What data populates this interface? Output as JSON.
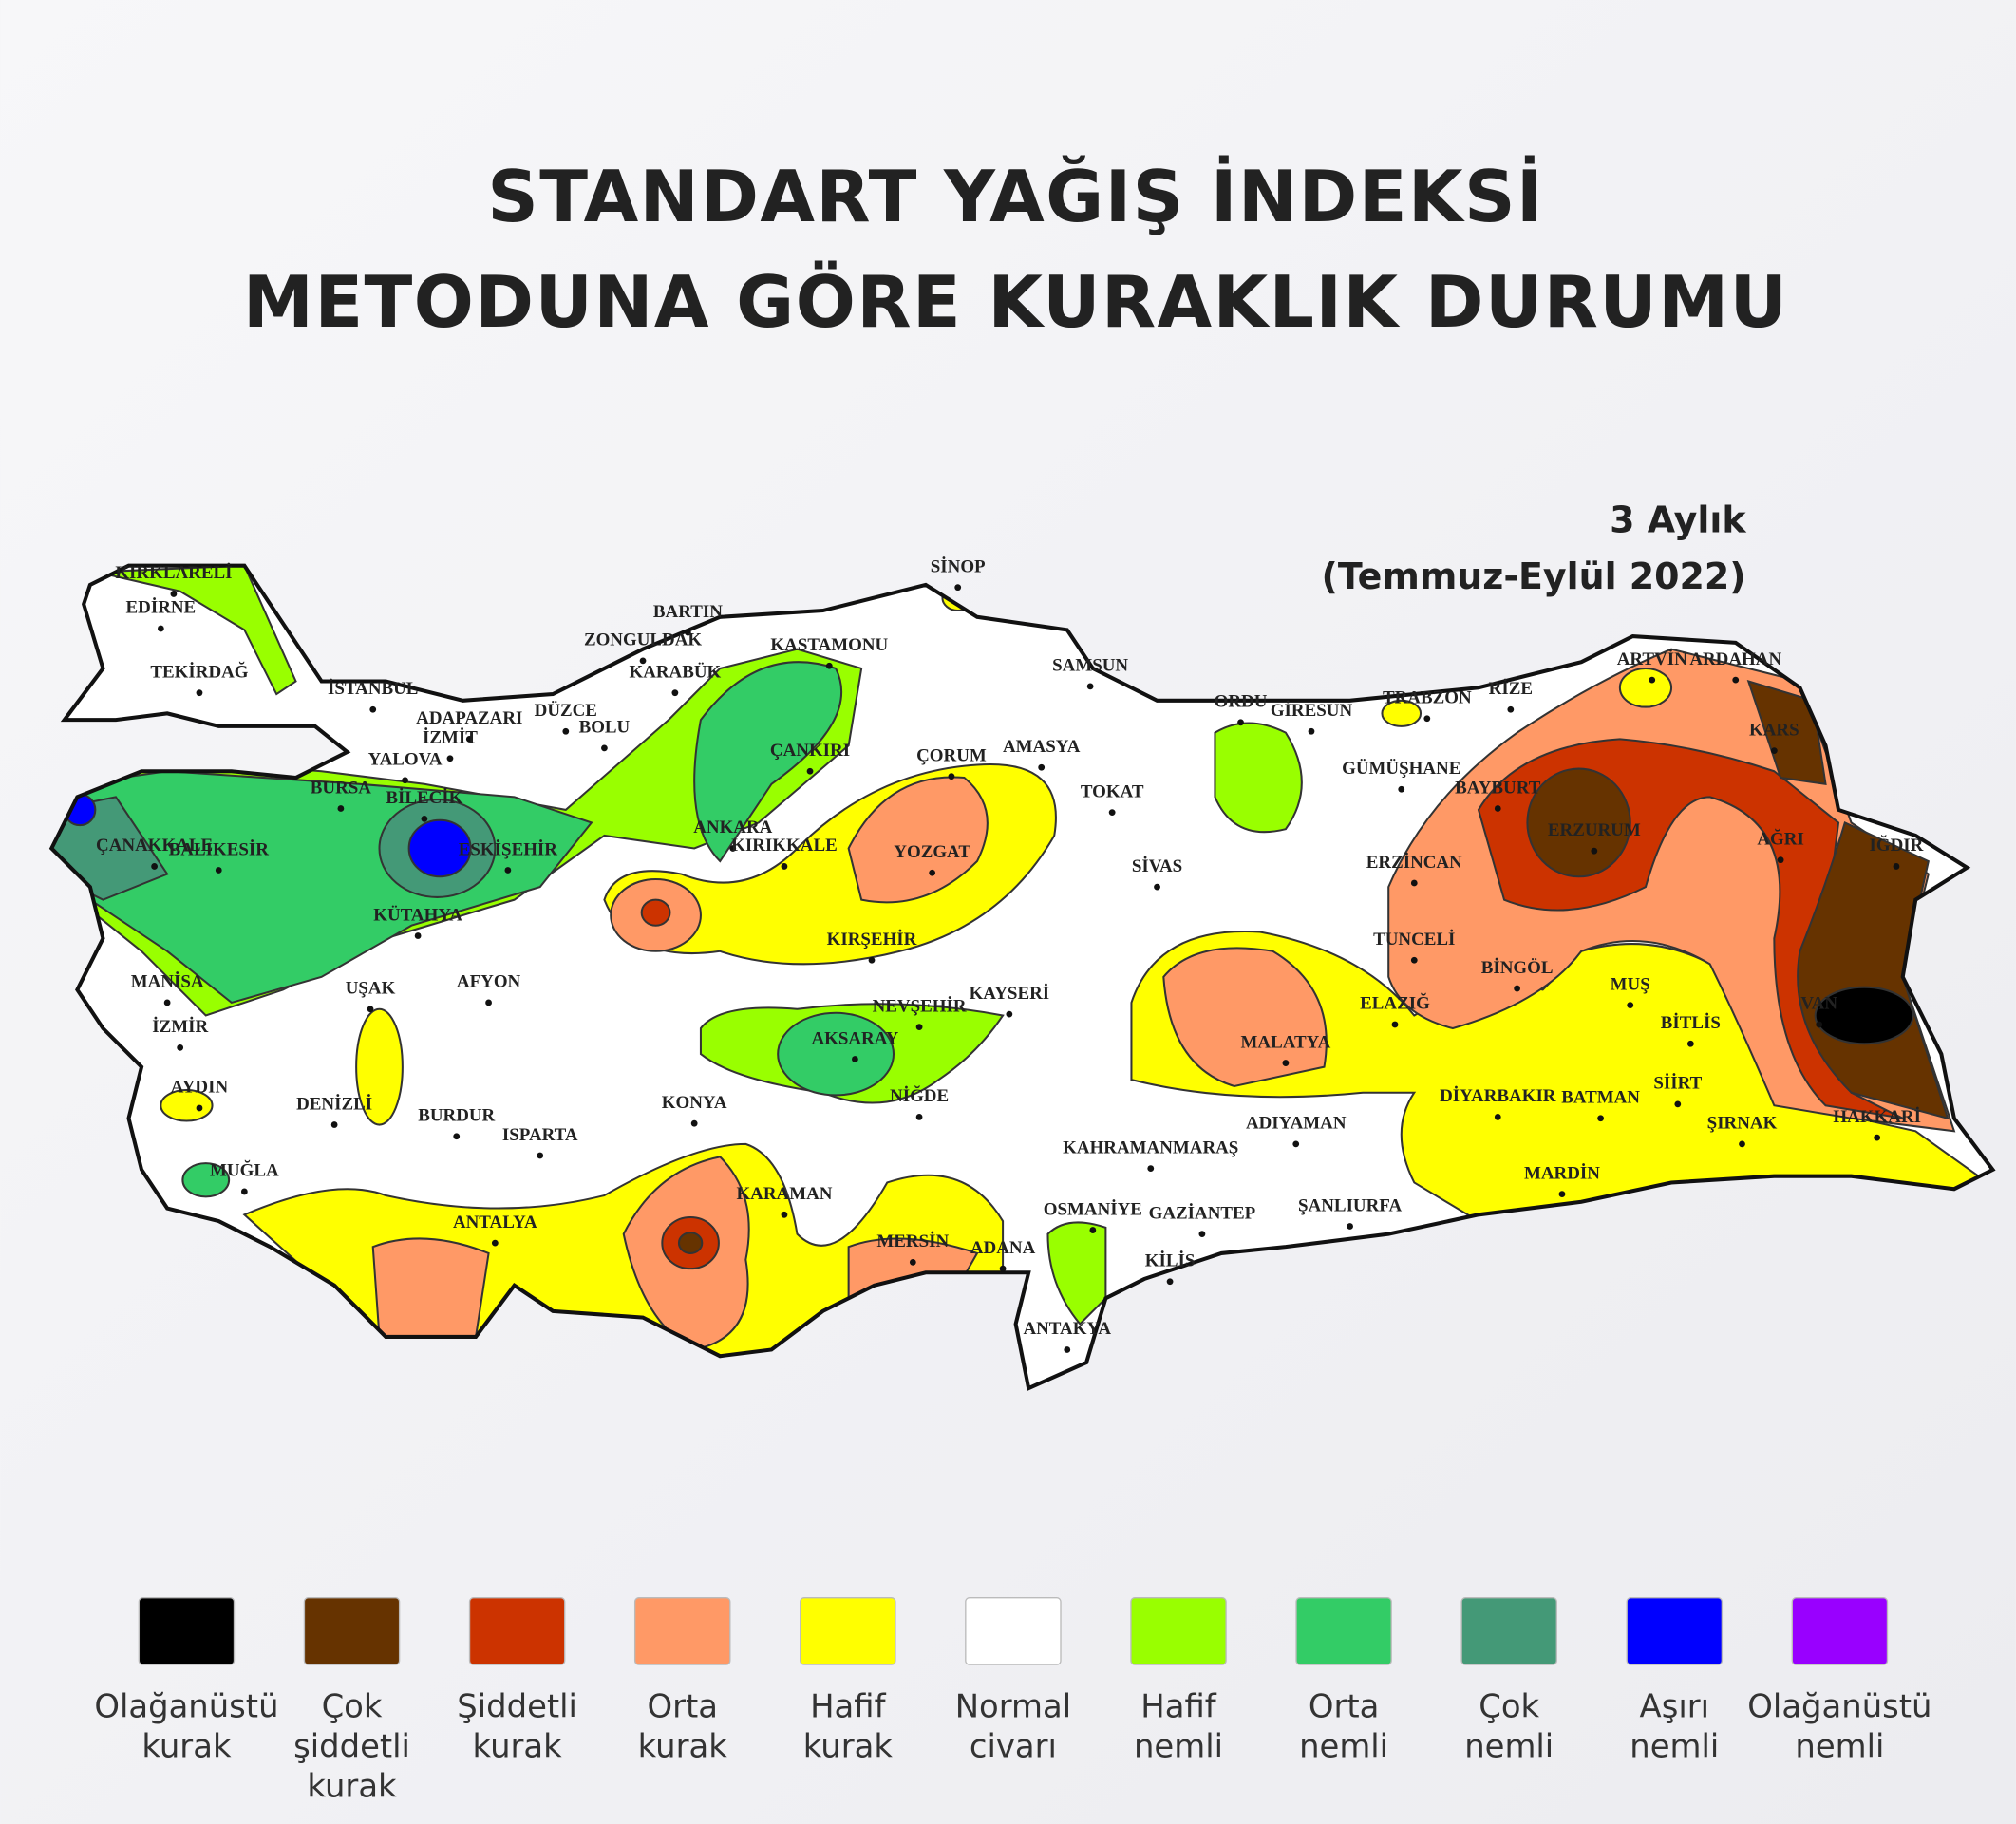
{
  "header": {
    "title": [
      "STANDART YAĞIŞ İNDEKSİ",
      "METODUNA GÖRE KURAKLIK DURUMU"
    ],
    "period": [
      "3 Aylık",
      "(Temmuz-Eylül 2022)"
    ]
  },
  "map": {
    "cities": [
      "KIRKLARELİ",
      "EDİRNE",
      "TEKİRDAĞ",
      "İSTANBUL",
      "ADAPAZARI",
      "DÜZCE",
      "BOLU",
      "İZMİT",
      "YALOVA",
      "BURSA",
      "BİLECİK",
      "ÇANAKKALE",
      "BALIKESİR",
      "ESKİŞEHİR",
      "KÜTAHYA",
      "MANİSA",
      "İZMİR",
      "UŞAK",
      "AFYON",
      "AYDIN",
      "DENİZLİ",
      "BURDUR",
      "ISPARTA",
      "MUĞLA",
      "ANTALYA",
      "KONYA",
      "KARAMAN",
      "MERSİN",
      "ADANA",
      "OSMANİYE",
      "ANTAKYA",
      "KİLİS",
      "GAZİANTEP",
      "ŞANLIURFA",
      "KAHRAMANMARAŞ",
      "ADIYAMAN",
      "MALATYA",
      "ELAZIĞ",
      "TUNCELİ",
      "BİNGÖL",
      "DİYARBAKIR",
      "BATMAN",
      "SİİRT",
      "MUŞ",
      "BİTLİS",
      "ŞIRNAK",
      "HAKKARİ",
      "MARDİN",
      "VAN",
      "AĞRI",
      "IĞDIR",
      "KARS",
      "ARTVİN",
      "ARDAHAN",
      "RİZE",
      "TRABZON",
      "GİRESUN",
      "ORDU",
      "GÜMÜŞHANE",
      "BAYBURT",
      "ERZURUM",
      "ERZİNCAN",
      "SAMSUN",
      "SİNOP",
      "TOKAT",
      "AMASYA",
      "ÇORUM",
      "SİVAS",
      "YOZGAT",
      "KASTAMONU",
      "BARTIN",
      "ZONGULDAK",
      "KARABÜK",
      "ÇANKIRI",
      "ANKARA",
      "KIRIKKALE",
      "KIRŞEHİR",
      "NEVŞEHİR",
      "KAYSERİ",
      "AKSARAY",
      "NİĞDE"
    ]
  },
  "legend": [
    {
      "color": "#000000",
      "label": [
        "Olağanüstü",
        "kurak"
      ]
    },
    {
      "color": "#663300",
      "label": [
        "Çok",
        "şiddetli",
        "kurak"
      ]
    },
    {
      "color": "#cc3300",
      "label": [
        "Şiddetli",
        "kurak"
      ]
    },
    {
      "color": "#ff9966",
      "label": [
        "Orta",
        "kurak"
      ]
    },
    {
      "color": "#ffff00",
      "label": [
        "Hafif",
        "kurak"
      ]
    },
    {
      "color": "#ffffff",
      "label": [
        "Normal",
        "civarı"
      ]
    },
    {
      "color": "#99ff00",
      "label": [
        "Hafif",
        "nemli"
      ]
    },
    {
      "color": "#33cc66",
      "label": [
        "Orta",
        "nemli"
      ]
    },
    {
      "color": "#449977",
      "label": [
        "Çok",
        "nemli"
      ]
    },
    {
      "color": "#0000ff",
      "label": [
        "Aşırı",
        "nemli"
      ]
    },
    {
      "color": "#9900ff",
      "label": [
        "Olağanüstü",
        "nemli"
      ]
    }
  ]
}
